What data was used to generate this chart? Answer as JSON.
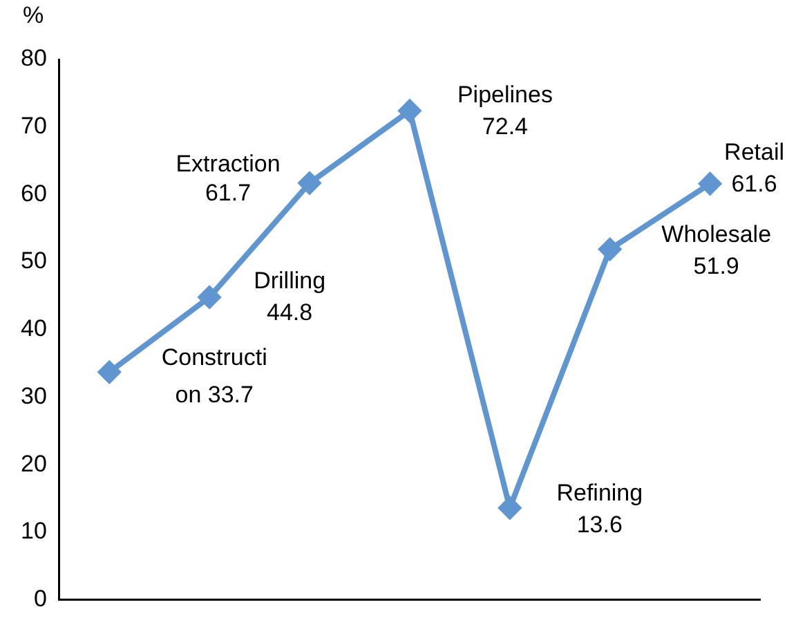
{
  "chart_data": {
    "type": "line",
    "ylabel": "%",
    "categories": [
      null,
      null,
      null,
      null,
      null,
      null,
      null
    ],
    "series": [
      {
        "color": "#6096cf",
        "values": [
          33.7,
          44.8,
          61.7,
          72.4,
          13.6,
          51.9,
          61.6
        ],
        "value_labels": [
          "Constructi\non 33.7",
          "Drilling\n44.8",
          "Extraction\n61.7",
          "Pipelines\n72.4",
          "Refining\n13.6",
          "Wholesale\n51.9",
          "Retail\n61.6"
        ]
      }
    ],
    "ylim": [
      0,
      80
    ],
    "yticks": [
      0,
      10,
      20,
      30,
      40,
      50,
      60,
      70,
      80
    ],
    "grid": false,
    "legend": false,
    "marker": "diamond",
    "line_style": "solid"
  }
}
